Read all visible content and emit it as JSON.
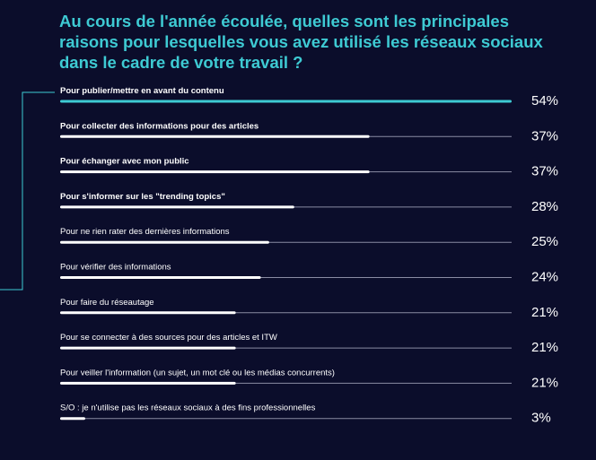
{
  "chart_data": {
    "type": "bar",
    "orientation": "horizontal",
    "title": "Au cours de l'année écoulée, quelles sont les principales raisons pour lesquelles vous avez utilisé les réseaux sociaux dans le cadre de votre travail ?",
    "categories": [
      "Pour publier/mettre en avant du contenu",
      "Pour collecter des informations pour des articles",
      "Pour échanger avec mon public",
      "Pour s'informer sur les \"trending topics\"",
      "Pour ne rien rater des dernières informations",
      "Pour vérifier des informations",
      "Pour faire du réseautage",
      "Pour se connecter à des sources pour des articles et ITW",
      "Pour veiller l'information (un sujet, un mot clé ou les médias concurrents)",
      "S/O : je n'utilise pas les réseaux sociaux à des fins professionnelles"
    ],
    "values": [
      54,
      37,
      37,
      28,
      25,
      24,
      21,
      21,
      21,
      3
    ],
    "value_labels": [
      "54%",
      "37%",
      "37%",
      "28%",
      "25%",
      "24%",
      "21%",
      "21%",
      "21%",
      "3%"
    ],
    "bold_categories": [
      0,
      1,
      2,
      3
    ],
    "highlight_index": 0,
    "xlim": [
      0,
      54
    ],
    "colors": {
      "background": "#0b0d2b",
      "title": "#3ecad3",
      "highlight": "#3ecad3",
      "bar": "#ffffff",
      "track": "#8a8ca3",
      "bracket": "#3ecad3"
    }
  }
}
